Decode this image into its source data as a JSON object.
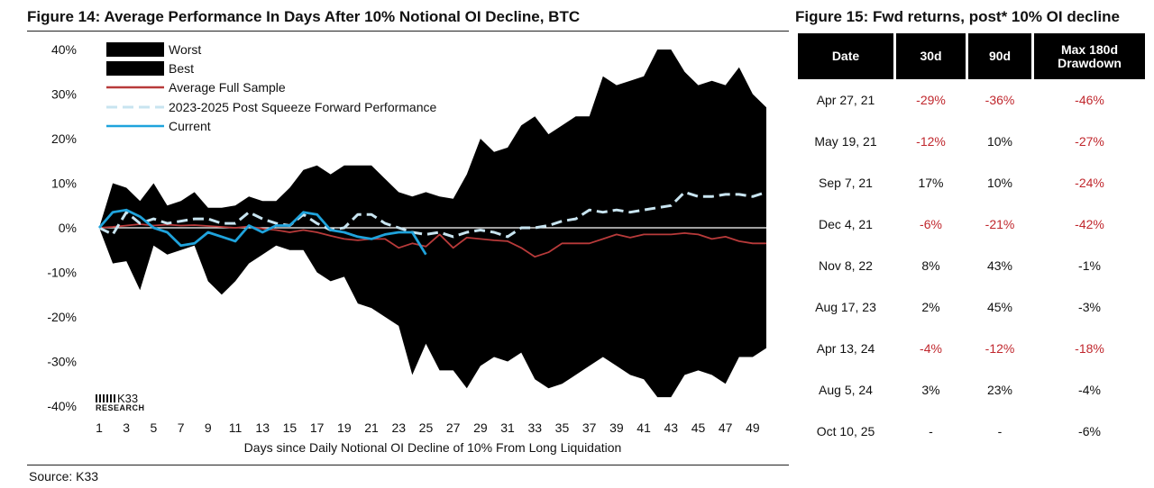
{
  "figure14": {
    "title": "Figure 14: Average Performance In Days After 10% Notional OI Decline, BTC",
    "source": "Source: K33",
    "logo": {
      "brand": "K33",
      "sub": "RESEARCH"
    }
  },
  "chart_data": {
    "type": "area",
    "title": "Figure 14: Average Performance In Days After 10% Notional OI Decline, BTC",
    "xlabel": "Days since Daily Notional OI Decline of 10% From Long Liquidation",
    "ylabel": "",
    "ylim": [
      -0.4,
      0.4
    ],
    "yticks": [
      "40%",
      "30%",
      "20%",
      "10%",
      "0%",
      "-10%",
      "-20%",
      "-30%",
      "-40%"
    ],
    "ytick_values": [
      0.4,
      0.3,
      0.2,
      0.1,
      0,
      -0.1,
      -0.2,
      -0.3,
      -0.4
    ],
    "xticks": [
      "1",
      "3",
      "5",
      "7",
      "9",
      "11",
      "13",
      "15",
      "17",
      "19",
      "21",
      "23",
      "25",
      "27",
      "29",
      "31",
      "33",
      "35",
      "37",
      "39",
      "41",
      "43",
      "45",
      "47",
      "49"
    ],
    "legend_position": "top-left",
    "series": [
      {
        "name": "Worst",
        "style": "area-lower",
        "color": "#000000",
        "x": [
          1,
          2,
          3,
          4,
          5,
          6,
          7,
          8,
          9,
          10,
          11,
          12,
          13,
          14,
          15,
          16,
          17,
          18,
          19,
          20,
          21,
          22,
          23,
          24,
          25,
          26,
          27,
          28,
          29,
          30,
          31,
          32,
          33,
          34,
          35,
          36,
          37,
          38,
          39,
          40,
          41,
          42,
          43,
          44,
          45,
          46,
          47,
          48,
          49,
          50
        ],
        "values": [
          0,
          -0.08,
          -0.075,
          -0.14,
          -0.04,
          -0.06,
          -0.05,
          -0.04,
          -0.12,
          -0.15,
          -0.12,
          -0.08,
          -0.06,
          -0.04,
          -0.05,
          -0.05,
          -0.1,
          -0.12,
          -0.11,
          -0.17,
          -0.18,
          -0.2,
          -0.22,
          -0.33,
          -0.26,
          -0.32,
          -0.32,
          -0.36,
          -0.31,
          -0.29,
          -0.3,
          -0.28,
          -0.34,
          -0.36,
          -0.35,
          -0.33,
          -0.31,
          -0.29,
          -0.31,
          -0.33,
          -0.34,
          -0.38,
          -0.38,
          -0.33,
          -0.32,
          -0.33,
          -0.35,
          -0.29,
          -0.29,
          -0.27
        ]
      },
      {
        "name": "Best",
        "style": "area-upper",
        "color": "#000000",
        "x": [
          1,
          2,
          3,
          4,
          5,
          6,
          7,
          8,
          9,
          10,
          11,
          12,
          13,
          14,
          15,
          16,
          17,
          18,
          19,
          20,
          21,
          22,
          23,
          24,
          25,
          26,
          27,
          28,
          29,
          30,
          31,
          32,
          33,
          34,
          35,
          36,
          37,
          38,
          39,
          40,
          41,
          42,
          43,
          44,
          45,
          46,
          47,
          48,
          49,
          50
        ],
        "values": [
          0,
          0.1,
          0.09,
          0.06,
          0.1,
          0.05,
          0.06,
          0.08,
          0.045,
          0.045,
          0.05,
          0.07,
          0.06,
          0.06,
          0.09,
          0.13,
          0.14,
          0.12,
          0.14,
          0.14,
          0.14,
          0.11,
          0.08,
          0.07,
          0.08,
          0.07,
          0.065,
          0.12,
          0.2,
          0.17,
          0.18,
          0.23,
          0.25,
          0.21,
          0.23,
          0.25,
          0.25,
          0.34,
          0.32,
          0.33,
          0.34,
          0.4,
          0.4,
          0.35,
          0.32,
          0.33,
          0.32,
          0.36,
          0.3,
          0.27
        ]
      },
      {
        "name": "Average Full Sample",
        "style": "line",
        "color": "#b83a3a",
        "x": [
          1,
          2,
          3,
          4,
          5,
          6,
          7,
          8,
          9,
          10,
          11,
          12,
          13,
          14,
          15,
          16,
          17,
          18,
          19,
          20,
          21,
          22,
          23,
          24,
          25,
          26,
          27,
          28,
          29,
          30,
          31,
          32,
          33,
          34,
          35,
          36,
          37,
          38,
          39,
          40,
          41,
          42,
          43,
          44,
          45,
          46,
          47,
          48,
          49,
          50
        ],
        "values": [
          0,
          0.002,
          0.005,
          0.008,
          0.005,
          0.007,
          0.005,
          0.006,
          0.004,
          0.002,
          0,
          0.003,
          -0.002,
          -0.005,
          -0.01,
          -0.005,
          -0.01,
          -0.018,
          -0.025,
          -0.028,
          -0.025,
          -0.025,
          -0.045,
          -0.035,
          -0.042,
          -0.015,
          -0.045,
          -0.022,
          -0.025,
          -0.028,
          -0.03,
          -0.045,
          -0.065,
          -0.055,
          -0.035,
          -0.035,
          -0.035,
          -0.025,
          -0.015,
          -0.022,
          -0.015,
          -0.015,
          -0.015,
          -0.012,
          -0.015,
          -0.025,
          -0.02,
          -0.03,
          -0.035,
          -0.035
        ]
      },
      {
        "name": "2023-2025 Post Squeeze Forward Performance",
        "style": "dashed",
        "color": "#c8e4f0",
        "x": [
          1,
          2,
          3,
          4,
          5,
          6,
          7,
          8,
          9,
          10,
          11,
          12,
          13,
          14,
          15,
          16,
          17,
          18,
          19,
          20,
          21,
          22,
          23,
          24,
          25,
          26,
          27,
          28,
          29,
          30,
          31,
          32,
          33,
          34,
          35,
          36,
          37,
          38,
          39,
          40,
          41,
          42,
          43,
          44,
          45,
          46,
          47,
          48,
          49,
          50
        ],
        "values": [
          0,
          -0.015,
          0.035,
          0.01,
          0.02,
          0.01,
          0.015,
          0.02,
          0.02,
          0.01,
          0.01,
          0.035,
          0.02,
          0.01,
          0.005,
          0.03,
          0.01,
          -0.005,
          0,
          0.03,
          0.03,
          0.01,
          0,
          -0.01,
          -0.015,
          -0.01,
          -0.02,
          -0.01,
          -0.005,
          -0.01,
          -0.02,
          0,
          0,
          0.005,
          0.015,
          0.02,
          0.04,
          0.035,
          0.04,
          0.035,
          0.04,
          0.045,
          0.05,
          0.08,
          0.07,
          0.07,
          0.075,
          0.075,
          0.07,
          0.08
        ]
      },
      {
        "name": "Current",
        "style": "line",
        "color": "#1fa3dc",
        "x": [
          1,
          2,
          3,
          4,
          5,
          6,
          7,
          8,
          9,
          10,
          11,
          12,
          13,
          14,
          15,
          16,
          17,
          18,
          19,
          20,
          21,
          22,
          23,
          24,
          25
        ],
        "values": [
          0,
          0.035,
          0.04,
          0.025,
          0,
          -0.01,
          -0.04,
          -0.035,
          -0.01,
          -0.02,
          -0.03,
          0.005,
          -0.01,
          0.005,
          0.005,
          0.035,
          0.03,
          -0.005,
          -0.01,
          -0.02,
          -0.025,
          -0.015,
          -0.01,
          -0.01,
          -0.06
        ]
      }
    ]
  },
  "figure15": {
    "title": "Figure 15: Fwd returns, post* 10% OI decline",
    "headers": [
      "Date",
      "30d",
      "90d",
      "Max 180d Drawdown"
    ],
    "rows": [
      {
        "date": "Apr 27, 21",
        "d30": "-29%",
        "d90": "-36%",
        "dd": "-46%",
        "d30_neg": true,
        "d90_neg": true,
        "dd_neg": true
      },
      {
        "date": "May 19, 21",
        "d30": "-12%",
        "d90": "10%",
        "dd": "-27%",
        "d30_neg": true,
        "d90_neg": false,
        "dd_neg": true
      },
      {
        "date": "Sep 7, 21",
        "d30": "17%",
        "d90": "10%",
        "dd": "-24%",
        "d30_neg": false,
        "d90_neg": false,
        "dd_neg": true
      },
      {
        "date": "Dec 4, 21",
        "d30": "-6%",
        "d90": "-21%",
        "dd": "-42%",
        "d30_neg": true,
        "d90_neg": true,
        "dd_neg": true
      },
      {
        "date": "Nov 8, 22",
        "d30": "8%",
        "d90": "43%",
        "dd": "-1%",
        "d30_neg": false,
        "d90_neg": false,
        "dd_neg": false
      },
      {
        "date": "Aug 17, 23",
        "d30": "2%",
        "d90": "45%",
        "dd": "-3%",
        "d30_neg": false,
        "d90_neg": false,
        "dd_neg": false
      },
      {
        "date": "Apr 13, 24",
        "d30": "-4%",
        "d90": "-12%",
        "dd": "-18%",
        "d30_neg": true,
        "d90_neg": true,
        "dd_neg": true
      },
      {
        "date": "Aug 5, 24",
        "d30": "3%",
        "d90": "23%",
        "dd": "-4%",
        "d30_neg": false,
        "d90_neg": false,
        "dd_neg": false
      },
      {
        "date": "Oct 10, 25",
        "d30": "-",
        "d90": "-",
        "dd": "-6%",
        "d30_neg": false,
        "d90_neg": false,
        "dd_neg": false
      }
    ],
    "neg_color": "#c0272d"
  }
}
